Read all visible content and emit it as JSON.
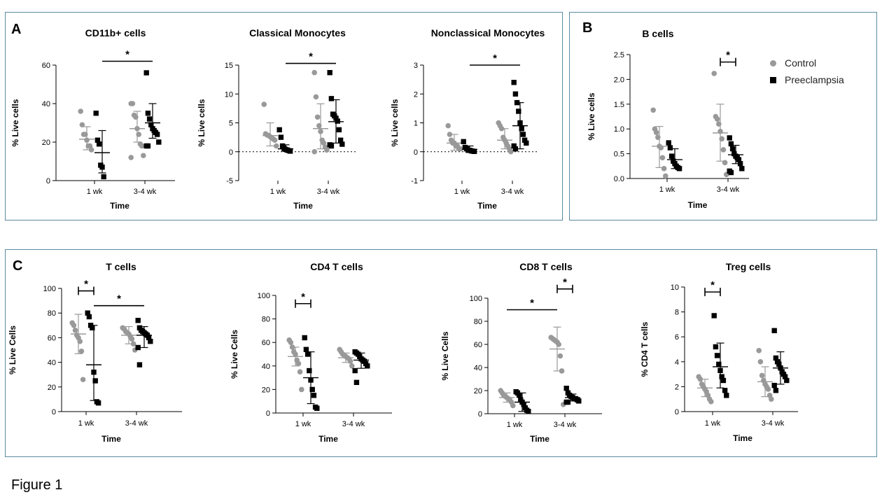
{
  "panels": [
    {
      "letter": "A"
    },
    {
      "letter": "B"
    },
    {
      "letter": "C"
    }
  ],
  "figure_caption": "Figure 1",
  "legend": [
    {
      "label": "Control",
      "color": "#999999",
      "marker": "circle"
    },
    {
      "label": "Preeclampsia",
      "color": "#000000",
      "marker": "square"
    }
  ],
  "chart_data": [
    {
      "type": "scatter",
      "title": "CD11b+ cells",
      "xlabel": "Time",
      "ylabel": "% Live cells",
      "categories": [
        "1 wk",
        "3-4 wk"
      ],
      "ylim": [
        0,
        60
      ],
      "yticks": [
        "0",
        "20",
        "40",
        "60"
      ],
      "zero_line": "solid",
      "series": [
        {
          "name": "Control",
          "groups": [
            {
              "points": [
                36,
                29,
                24,
                24,
                21,
                18,
                18,
                16
              ],
              "mean": 21.5,
              "sd_low": 16,
              "sd_high": 28
            },
            {
              "points": [
                40,
                40,
                34,
                33,
                27,
                24,
                19,
                18,
                13,
                12
              ],
              "mean": 27,
              "sd_low": 20,
              "sd_high": 36
            }
          ]
        },
        {
          "name": "Preeclampsia",
          "groups": [
            {
              "points": [
                35,
                21,
                19,
                8,
                7,
                2
              ],
              "mean": 14.5,
              "sd_low": 4,
              "sd_high": 26
            },
            {
              "points": [
                56,
                35,
                32,
                29,
                27,
                26,
                25,
                24,
                20,
                18,
                18
              ],
              "mean": 30,
              "sd_low": 22,
              "sd_high": 40
            }
          ]
        }
      ],
      "significance": [
        {
          "from": [
            0,
            1
          ],
          "to": [
            1,
            1
          ],
          "y": 62,
          "label": "*",
          "bracket": false
        }
      ]
    },
    {
      "type": "scatter",
      "title": "Classical Monocytes",
      "xlabel": "Time",
      "ylabel": "% Live cells",
      "categories": [
        "1 wk",
        "3-4 wk"
      ],
      "ylim": [
        -5,
        15
      ],
      "yticks": [
        "-5",
        "0",
        "5",
        "10",
        "15"
      ],
      "zero_line": "dotted",
      "series": [
        {
          "name": "Control",
          "groups": [
            {
              "points": [
                8.2,
                3.1,
                2.9,
                2.8,
                2.6,
                2.4,
                2.2,
                2.0,
                1.0
              ],
              "mean": 2.8,
              "sd_low": 1.0,
              "sd_high": 5.0
            },
            {
              "points": [
                13.7,
                9.5,
                6.0,
                4.5,
                3.5,
                2.0,
                1.5,
                0.8,
                0.3,
                0.0
              ],
              "mean": 4.0,
              "sd_low": 0.5,
              "sd_high": 8.3
            }
          ]
        },
        {
          "name": "Preeclampsia",
          "groups": [
            {
              "points": [
                3.8,
                2.5,
                1.0,
                0.6,
                0.4,
                0.3,
                0.2,
                0.1
              ],
              "mean": 0.5,
              "sd_low": 0.1,
              "sd_high": 1.2
            },
            {
              "points": [
                13.7,
                9.2,
                6.5,
                6.2,
                5.8,
                5.3,
                3.8,
                2.0,
                1.3,
                1.2,
                1.0
              ],
              "mean": 5.2,
              "sd_low": 1.5,
              "sd_high": 9.0
            }
          ]
        }
      ],
      "significance": [
        {
          "from": [
            0,
            1
          ],
          "to": [
            1,
            1
          ],
          "y": 15.3,
          "label": "*",
          "bracket": false
        }
      ]
    },
    {
      "type": "scatter",
      "title": "Nonclassical Monocytes",
      "xlabel": "Time",
      "ylabel": "% Live cells",
      "categories": [
        "1 wk",
        "3-4 wk"
      ],
      "ylim": [
        -1,
        3
      ],
      "yticks": [
        "-1",
        "0",
        "1",
        "2",
        "3"
      ],
      "zero_line": "dotted",
      "series": [
        {
          "name": "Control",
          "groups": [
            {
              "points": [
                0.9,
                0.6,
                0.4,
                0.3,
                0.3,
                0.2,
                0.2,
                0.1,
                0.1
              ],
              "mean": 0.3,
              "sd_low": 0.05,
              "sd_high": 0.6
            },
            {
              "points": [
                1.0,
                0.9,
                0.8,
                0.5,
                0.4,
                0.3,
                0.2,
                0.1,
                0.0
              ],
              "mean": 0.4,
              "sd_low": 0.1,
              "sd_high": 0.8
            }
          ]
        },
        {
          "name": "Preeclampsia",
          "groups": [
            {
              "points": [
                0.35,
                0.15,
                0.1,
                0.05,
                0.05,
                0.03,
                0.02,
                0.01
              ],
              "mean": 0.08,
              "sd_low": 0.0,
              "sd_high": 0.2
            },
            {
              "points": [
                2.4,
                2.0,
                1.7,
                1.4,
                1.0,
                0.8,
                0.6,
                0.4,
                0.3,
                0.2,
                0.1
              ],
              "mean": 0.9,
              "sd_low": 0.1,
              "sd_high": 1.7
            }
          ]
        }
      ],
      "significance": [
        {
          "from": [
            0,
            1
          ],
          "to": [
            1,
            1
          ],
          "y": 3.0,
          "label": "*",
          "bracket": false
        }
      ]
    },
    {
      "type": "scatter",
      "title": "B cells",
      "xlabel": "Time",
      "ylabel": "% Live cells",
      "categories": [
        "1 wk",
        "3-4 wk"
      ],
      "ylim": [
        0,
        2.5
      ],
      "yticks": [
        "0.0",
        "0.5",
        "1.0",
        "1.5",
        "2.0",
        "2.5"
      ],
      "zero_line": "solid",
      "series": [
        {
          "name": "Control",
          "groups": [
            {
              "points": [
                1.38,
                1.0,
                0.93,
                0.83,
                0.65,
                0.62,
                0.42,
                0.2,
                0.05
              ],
              "mean": 0.65,
              "sd_low": 0.22,
              "sd_high": 1.05
            },
            {
              "points": [
                2.12,
                1.25,
                1.2,
                1.1,
                0.95,
                0.8,
                0.58,
                0.32,
                0.08
              ],
              "mean": 0.92,
              "sd_low": 0.35,
              "sd_high": 1.5
            }
          ]
        },
        {
          "name": "Preeclampsia",
          "groups": [
            {
              "points": [
                0.72,
                0.62,
                0.45,
                0.35,
                0.3,
                0.25,
                0.22,
                0.2
              ],
              "mean": 0.38,
              "sd_low": 0.2,
              "sd_high": 0.6
            },
            {
              "points": [
                0.82,
                0.7,
                0.6,
                0.5,
                0.45,
                0.42,
                0.38,
                0.3,
                0.2,
                0.15,
                0.12
              ],
              "mean": 0.48,
              "sd_low": 0.3,
              "sd_high": 0.67
            }
          ]
        }
      ],
      "significance": [
        {
          "from": [
            1,
            0
          ],
          "to": [
            1,
            1
          ],
          "y": 2.35,
          "label": "*",
          "bracket": true
        }
      ]
    },
    {
      "type": "scatter",
      "title": "T cells",
      "xlabel": "Time",
      "ylabel": "% Live Cells",
      "categories": [
        "1 wk",
        "3-4 wk"
      ],
      "ylim": [
        0,
        100
      ],
      "yticks": [
        "0",
        "20",
        "40",
        "60",
        "80",
        "100"
      ],
      "zero_line": "solid",
      "series": [
        {
          "name": "Control",
          "groups": [
            {
              "points": [
                72,
                70,
                66,
                62,
                60,
                57,
                49,
                26
              ],
              "mean": 63,
              "sd_low": 47,
              "sd_high": 79
            },
            {
              "points": [
                68,
                67,
                65,
                64,
                63,
                61,
                59,
                55,
                50
              ],
              "mean": 62,
              "sd_low": 55,
              "sd_high": 69
            }
          ]
        },
        {
          "name": "Preeclampsia",
          "groups": [
            {
              "points": [
                80,
                77,
                70,
                68,
                32,
                25,
                8,
                7
              ],
              "mean": 38,
              "sd_low": 9,
              "sd_high": 70
            },
            {
              "points": [
                74,
                68,
                66,
                65,
                64,
                63,
                62,
                60,
                57,
                52,
                38
              ],
              "mean": 62,
              "sd_low": 52,
              "sd_high": 69
            }
          ]
        }
      ],
      "significance": [
        {
          "from": [
            0,
            0
          ],
          "to": [
            0,
            1
          ],
          "y": 98,
          "label": "*",
          "bracket": true
        },
        {
          "from": [
            0,
            1
          ],
          "to": [
            1,
            1
          ],
          "y": 86,
          "label": "*",
          "bracket": false
        }
      ]
    },
    {
      "type": "scatter",
      "title": "CD4 T cells",
      "xlabel": "Time",
      "ylabel": "% Live Cells",
      "categories": [
        "1 wk",
        "3-4 wk"
      ],
      "ylim": [
        0,
        100
      ],
      "yticks": [
        "0",
        "20",
        "40",
        "60",
        "80",
        "100"
      ],
      "zero_line": "solid",
      "series": [
        {
          "name": "Control",
          "groups": [
            {
              "points": [
                62,
                60,
                56,
                52,
                50,
                45,
                42,
                35,
                20
              ],
              "mean": 48,
              "sd_low": 40,
              "sd_high": 56
            },
            {
              "points": [
                54,
                52,
                50,
                49,
                48,
                47,
                46,
                44,
                40
              ],
              "mean": 47,
              "sd_low": 43,
              "sd_high": 51
            }
          ]
        },
        {
          "name": "Preeclampsia",
          "groups": [
            {
              "points": [
                64,
                54,
                50,
                36,
                28,
                20,
                15,
                5,
                4
              ],
              "mean": 30,
              "sd_low": 8,
              "sd_high": 52
            },
            {
              "points": [
                52,
                51,
                50,
                48,
                46,
                45,
                44,
                42,
                40,
                36,
                26
              ],
              "mean": 45,
              "sd_low": 38,
              "sd_high": 51
            }
          ]
        }
      ],
      "significance": [
        {
          "from": [
            0,
            0
          ],
          "to": [
            0,
            1
          ],
          "y": 93,
          "label": "*",
          "bracket": true
        }
      ]
    },
    {
      "type": "scatter",
      "title": "CD8 T cells",
      "xlabel": "Time",
      "ylabel": "% Live Cells",
      "categories": [
        "1 wk",
        "3-4 wk"
      ],
      "ylim": [
        0,
        100
      ],
      "yticks": [
        "0",
        "20",
        "40",
        "60",
        "80",
        "100"
      ],
      "zero_line": "solid",
      "series": [
        {
          "name": "Control",
          "groups": [
            {
              "points": [
                20,
                18,
                16,
                15,
                14,
                13,
                12,
                10,
                7
              ],
              "mean": 14,
              "sd_low": 10,
              "sd_high": 18
            },
            {
              "points": [
                66,
                65,
                64,
                63,
                62,
                60,
                50,
                37,
                8
              ],
              "mean": 56,
              "sd_low": 37,
              "sd_high": 75
            }
          ]
        },
        {
          "name": "Preeclampsia",
          "groups": [
            {
              "points": [
                19,
                18,
                16,
                12,
                10,
                8,
                5,
                3,
                2
              ],
              "mean": 10,
              "sd_low": 2,
              "sd_high": 18
            },
            {
              "points": [
                22,
                18,
                16,
                15,
                14,
                13,
                13,
                12,
                11,
                10,
                10
              ],
              "mean": 14,
              "sd_low": 11,
              "sd_high": 17
            }
          ]
        }
      ],
      "significance": [
        {
          "from": [
            0,
            0
          ],
          "to": [
            1,
            0
          ],
          "y": 90,
          "label": "*",
          "bracket": false
        },
        {
          "from": [
            1,
            0
          ],
          "to": [
            1,
            1
          ],
          "y": 108,
          "label": "*",
          "bracket": true
        }
      ]
    },
    {
      "type": "scatter",
      "title": "Treg cells",
      "xlabel": "Time",
      "ylabel": "% CD4 T cells",
      "categories": [
        "1 wk",
        "3-4 wk"
      ],
      "ylim": [
        0,
        10
      ],
      "yticks": [
        "0",
        "2",
        "4",
        "6",
        "8",
        "10"
      ],
      "zero_line": "solid",
      "series": [
        {
          "name": "Control",
          "groups": [
            {
              "points": [
                2.8,
                2.6,
                2.2,
                2.0,
                1.8,
                1.6,
                1.3,
                1.0,
                0.8
              ],
              "mean": 1.9,
              "sd_low": 1.2,
              "sd_high": 2.6
            },
            {
              "points": [
                4.9,
                4.0,
                2.9,
                2.5,
                2.2,
                2.0,
                1.8,
                1.3,
                1.0
              ],
              "mean": 2.4,
              "sd_low": 1.2,
              "sd_high": 3.6
            }
          ]
        },
        {
          "name": "Preeclampsia",
          "groups": [
            {
              "points": [
                7.7,
                5.2,
                4.5,
                3.8,
                3.3,
                2.8,
                2.5,
                1.7,
                1.3
              ],
              "mean": 3.6,
              "sd_low": 1.9,
              "sd_high": 5.5
            },
            {
              "points": [
                6.5,
                4.3,
                4.0,
                3.8,
                3.5,
                3.2,
                3.0,
                2.8,
                2.5,
                2.1,
                1.7
              ],
              "mean": 3.5,
              "sd_low": 2.2,
              "sd_high": 4.8
            }
          ]
        }
      ],
      "significance": [
        {
          "from": [
            0,
            0
          ],
          "to": [
            0,
            1
          ],
          "y": 9.6,
          "label": "*",
          "bracket": true
        }
      ]
    }
  ]
}
